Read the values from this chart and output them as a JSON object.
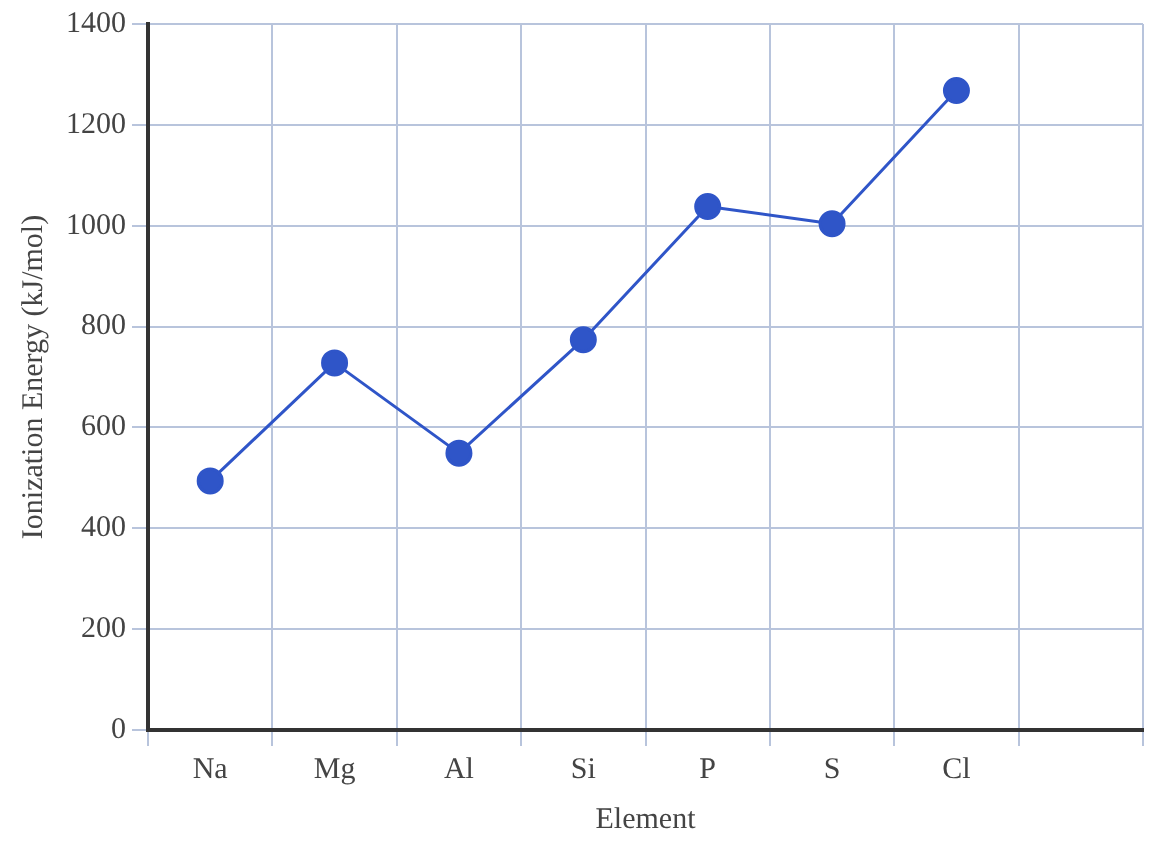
{
  "chart_data": {
    "type": "line",
    "xlabel": "Element",
    "ylabel": "Ionization Energy (kJ/mol)",
    "categories": [
      "Na",
      "Mg",
      "Al",
      "Si",
      "P",
      "S",
      "Cl",
      null
    ],
    "series": [
      {
        "color": "#2f55c8",
        "values": [
          494,
          728,
          549,
          774,
          1038,
          1004,
          1268,
          null
        ]
      }
    ],
    "ylim": [
      0,
      1400
    ],
    "yticks": [
      0,
      200,
      400,
      600,
      800,
      1000,
      1200,
      1400
    ],
    "grid": true,
    "marker": "circle",
    "legend": false
  }
}
